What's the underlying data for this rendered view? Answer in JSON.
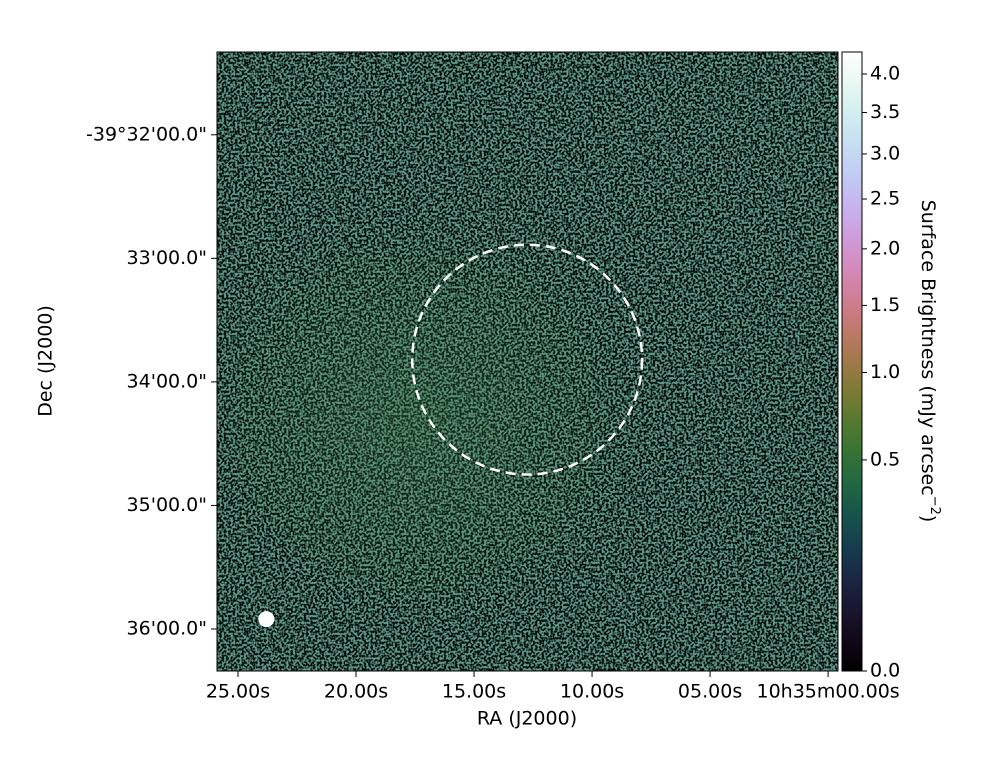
{
  "chart_data": {
    "type": "image",
    "xlabel": "RA (J2000)",
    "ylabel": "Dec (J2000)",
    "xlim": [
      25.89,
      -0.42
    ],
    "xticks": [
      {
        "value": 25,
        "label": "25.00s"
      },
      {
        "value": 20,
        "label": "20.00s"
      },
      {
        "value": 15,
        "label": "15.00s"
      },
      {
        "value": 10,
        "label": "10.00s"
      },
      {
        "value": 5,
        "label": "05.00s"
      },
      {
        "value": 0,
        "label": "10h35m00.00s"
      }
    ],
    "ylim": [
      36.34,
      31.33
    ],
    "yticks": [
      {
        "value": 32,
        "label": "-39°32'00.0\""
      },
      {
        "value": 33,
        "label": "33'00.0\""
      },
      {
        "value": 34,
        "label": "34'00.0\""
      },
      {
        "value": 35,
        "label": "35'00.0\""
      },
      {
        "value": 36,
        "label": "36'00.0\""
      }
    ],
    "colormap": "cubehelix",
    "color_scale": "sqrt",
    "clim": [
      0,
      4.3
    ],
    "cticks": [
      {
        "value": 0,
        "label": "0.0"
      },
      0.5,
      {
        "value": 1,
        "label": "1.0"
      },
      1.5,
      {
        "value": 2,
        "label": "2.0"
      },
      2.5,
      {
        "value": 3,
        "label": "3.0"
      },
      3.5,
      {
        "value": 4,
        "label": "4.0"
      }
    ],
    "colorbar_label": [
      "Surface Brightness (mJy arcsec",
      "−2",
      ")"
    ],
    "region": {
      "ra": 12.75,
      "dec": 33.82,
      "radius": 0.93,
      "color": "#ffffff"
    },
    "beam": {
      "ra": 23.8,
      "dec": 35.92,
      "radius": 0.065,
      "color": "#ffffff"
    }
  }
}
